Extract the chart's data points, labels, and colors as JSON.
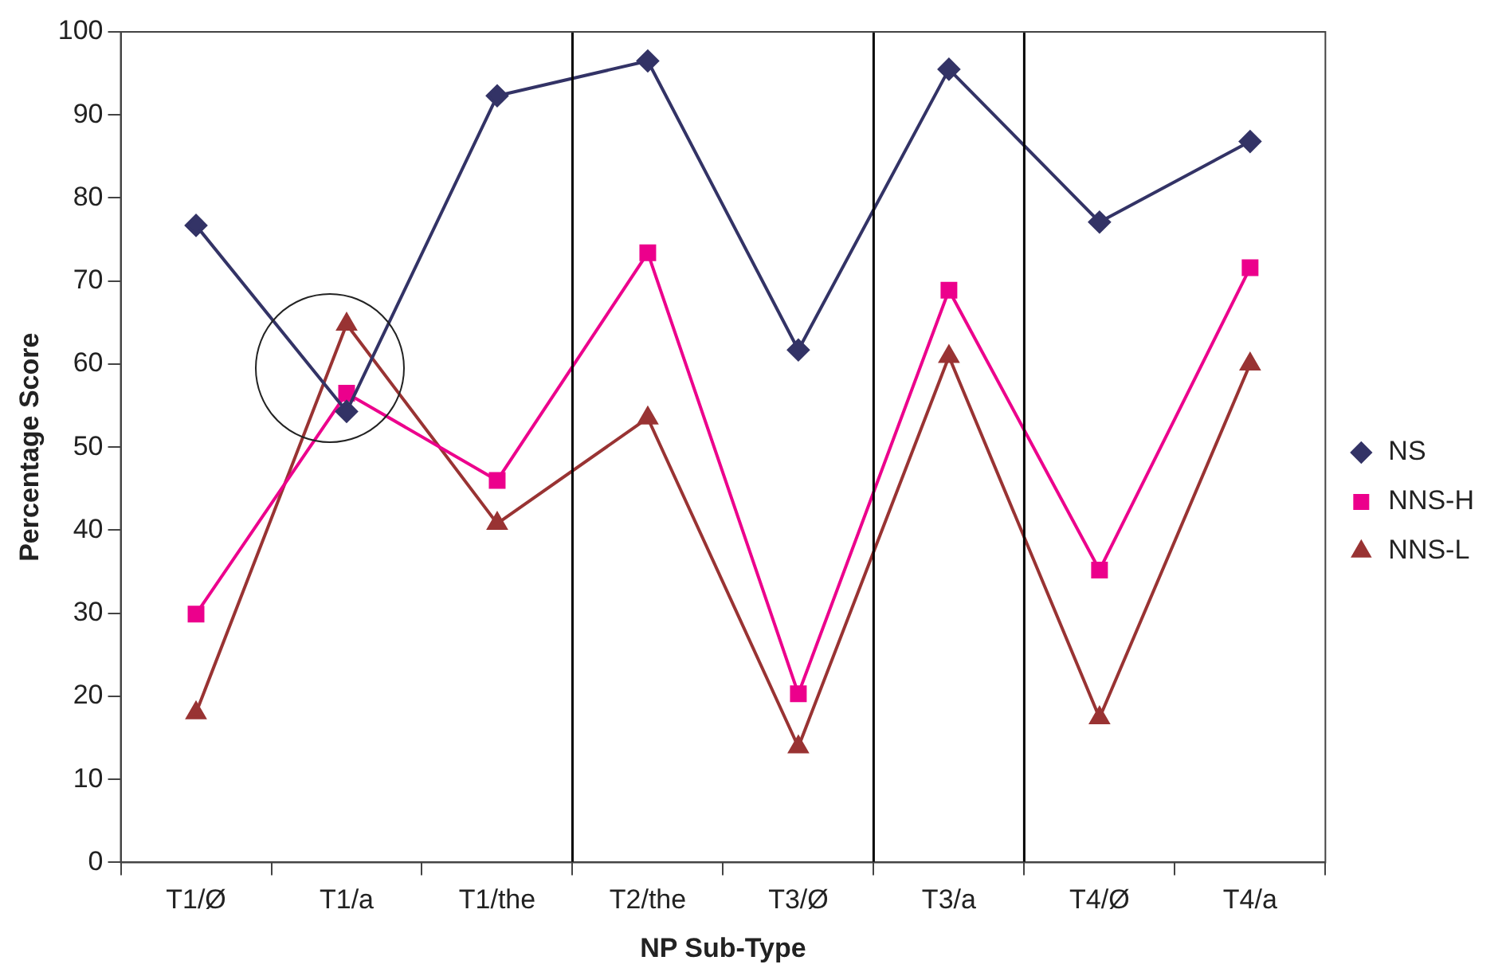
{
  "chart_data": {
    "type": "line",
    "xlabel": "NP Sub-Type",
    "ylabel": "Percentage Score",
    "categories": [
      "T1/Ø",
      "T1/a",
      "T1/the",
      "T2/the",
      "T3/Ø",
      "T3/a",
      "T4/Ø",
      "T4/a"
    ],
    "series": [
      {
        "name": "NS",
        "color": "#333366",
        "marker": "diamond",
        "values": [
          76.7,
          54.3,
          92.3,
          96.5,
          61.7,
          95.5,
          77.1,
          86.8
        ]
      },
      {
        "name": "NNS-H",
        "color": "#ec008c",
        "marker": "square",
        "values": [
          29.9,
          56.5,
          46.0,
          73.4,
          20.3,
          68.9,
          35.2,
          71.6
        ]
      },
      {
        "name": "NNS-L",
        "color": "#993333",
        "marker": "triangle",
        "values": [
          18.0,
          64.8,
          40.8,
          53.5,
          13.9,
          60.9,
          17.4,
          60.0
        ]
      }
    ],
    "ylim": [
      0,
      100
    ],
    "yticks": [
      0,
      10,
      20,
      30,
      40,
      50,
      60,
      70,
      80,
      90,
      100
    ],
    "grid": false,
    "legend": "right",
    "line_style": "solid"
  }
}
